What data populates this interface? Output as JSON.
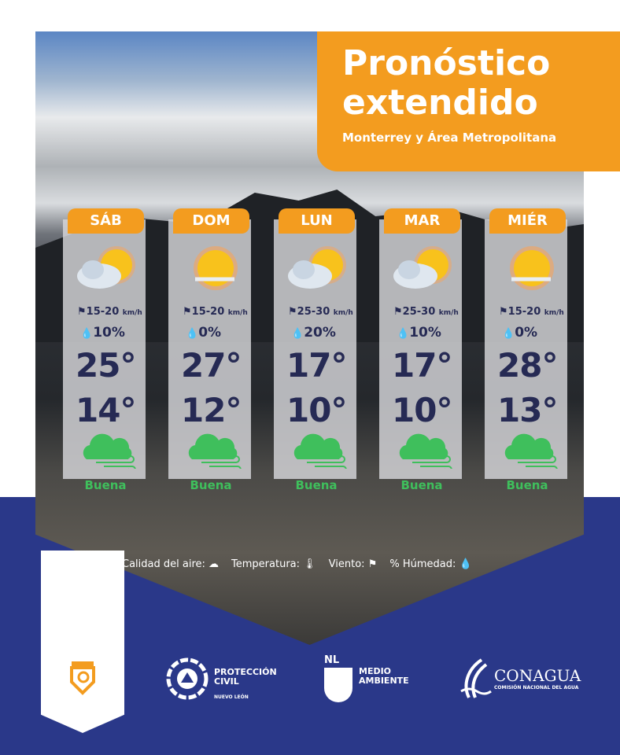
{
  "header": {
    "title_line1": "Pronóstico",
    "title_line2": "extendido",
    "subtitle": "Monterrey y Área Metropolitana"
  },
  "days": [
    {
      "day": "SÁB",
      "sky": "partly-cloudy",
      "wind": "15-20",
      "wind_unit": "km/h",
      "humidity": "10%",
      "high": "25°",
      "low": "14°",
      "air_quality": "Buena"
    },
    {
      "day": "DOM",
      "sky": "sunny",
      "wind": "15-20",
      "wind_unit": "km/h",
      "humidity": "0%",
      "high": "27°",
      "low": "12°",
      "air_quality": "Buena"
    },
    {
      "day": "LUN",
      "sky": "partly-cloudy",
      "wind": "25-30",
      "wind_unit": "km/h",
      "humidity": "20%",
      "high": "17°",
      "low": "10°",
      "air_quality": "Buena"
    },
    {
      "day": "MAR",
      "sky": "partly-cloudy",
      "wind": "25-30",
      "wind_unit": "km/h",
      "humidity": "10%",
      "high": "17°",
      "low": "10°",
      "air_quality": "Buena"
    },
    {
      "day": "MIÉR",
      "sky": "sunny",
      "wind": "15-20",
      "wind_unit": "km/h",
      "humidity": "0%",
      "high": "28°",
      "low": "13°",
      "air_quality": "Buena"
    }
  ],
  "legend": {
    "air": "Calidad del aire:",
    "temp": "Temperatura:",
    "wind": "Viento:",
    "humidity": "% Húmedad:"
  },
  "logos": {
    "pc_line1": "PROTECCIÓN",
    "pc_line2": "CIVIL",
    "pc_line3": "NUEVO LEÓN",
    "ma_badge": "NL",
    "ma_line1": "MEDIO",
    "ma_line2": "AMBIENTE",
    "conagua": "CONAGUA",
    "conagua_sub": "COMISIÓN NACIONAL DEL AGUA"
  },
  "colors": {
    "orange": "#f39c1f",
    "navy": "#2a3889",
    "text": "#262a54",
    "good": "#3fbf5c"
  }
}
